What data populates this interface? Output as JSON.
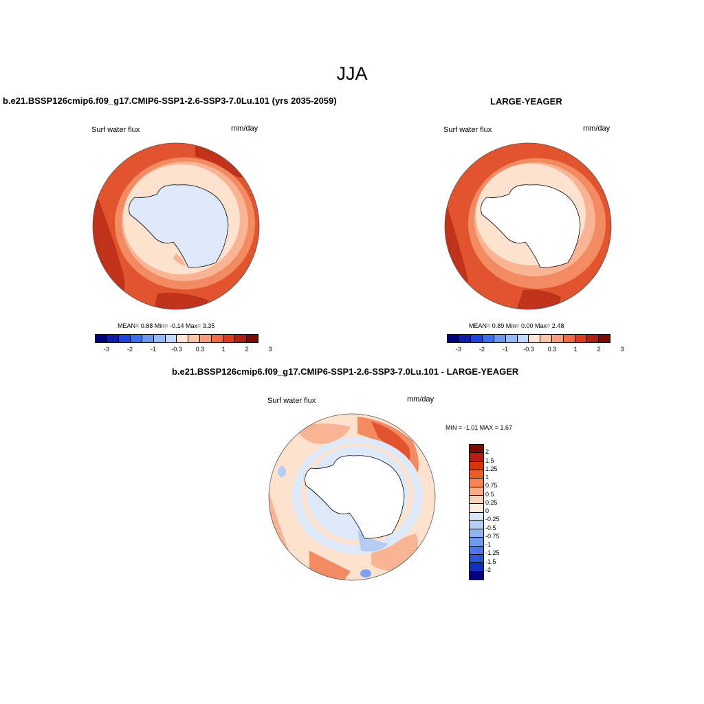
{
  "title": "JJA",
  "panels": [
    {
      "title": "b.e21.BSSP126cmip6.f09_g17.CMIP6-SSP1-2.6-SSP3-7.0Lu.101 (yrs 2035-2059)",
      "variable": "Surf water flux",
      "units": "mm/day",
      "stats": "MEAN=   0.88  Min=  -0.14  Max=   3.35",
      "stats_values": {
        "mean": 0.88,
        "min": -0.14,
        "max": 3.35
      }
    },
    {
      "title": "LARGE-YEAGER",
      "variable": "Surf water flux",
      "units": "mm/day",
      "stats": "MEAN=   0.89  Min=   0.00  Max=   2.48",
      "stats_values": {
        "mean": 0.89,
        "min": 0.0,
        "max": 2.48
      }
    },
    {
      "title": "b.e21.BSSP126cmip6.f09_g17.CMIP6-SSP1-2.6-SSP3-7.0Lu.101 - LARGE-YEAGER",
      "variable": "Surf water flux",
      "units": "mm/day",
      "stats": "MIN =  -1.01  MAX =   1.67",
      "stats_values": {
        "min": -1.01,
        "max": 1.67
      }
    }
  ],
  "colorbar_main": {
    "colors": [
      "#000080",
      "#0a1fb0",
      "#1a44dd",
      "#3a70f0",
      "#6a96f4",
      "#98b8f6",
      "#c4d8fa",
      "#fbe6d6",
      "#fcc5a8",
      "#f79b78",
      "#f06a48",
      "#de3a1e",
      "#b51f10",
      "#7a0c05"
    ],
    "labels": [
      "-3",
      "-2",
      "-1",
      "-0.3",
      "0.3",
      "1",
      "2",
      "3"
    ]
  },
  "colorbar_diff": {
    "colors": [
      "#7a0c05",
      "#b51f10",
      "#d8350f",
      "#ef5a2a",
      "#f5845a",
      "#f8ac88",
      "#fcd2b8",
      "#fdecdc",
      "#d9e6fa",
      "#b6cdf6",
      "#93b4f3",
      "#6f98ee",
      "#4b78e6",
      "#2a55d6",
      "#1032b8",
      "#000080"
    ],
    "labels": [
      "2",
      "1.5",
      "1.25",
      "1",
      "0.75",
      "0.5",
      "0.25",
      "0",
      "-0.25",
      "-0.5",
      "-0.75",
      "-1",
      "-1.25",
      "-1.5",
      "-2"
    ]
  },
  "map_colors": {
    "dark_red": "#c0321a",
    "red": "#e2542e",
    "orange": "#f28a62",
    "salmon": "#f8b494",
    "cream": "#fde3cf",
    "pale_blue": "#dde9f9",
    "light_blue": "#b4cdf5",
    "blue": "#7ea3ee",
    "land": "#ffffff",
    "coast": "#000000"
  }
}
